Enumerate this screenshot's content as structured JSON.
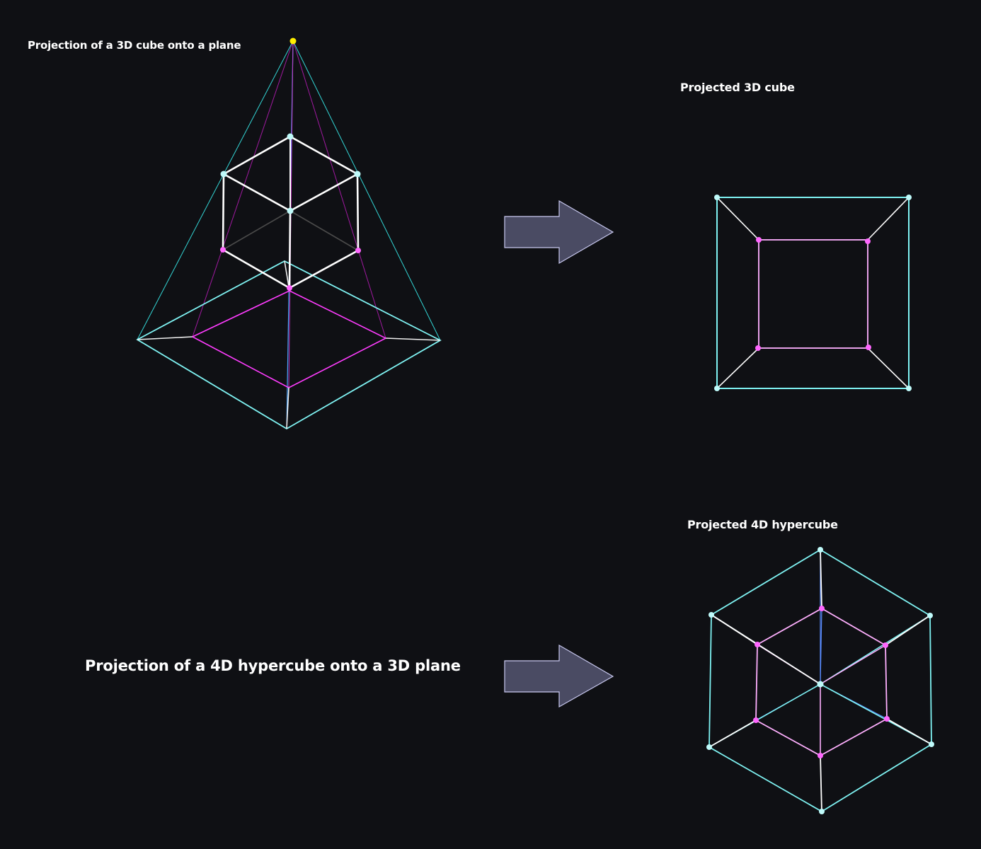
{
  "labels": {
    "cube_projection_title": "Projection of a 3D cube onto a plane",
    "projected_cube_title": "Projected 3D cube",
    "projected_hypercube_title": "Projected 4D hypercube",
    "hypercube_projection_title": "Projection of a 4D hypercube onto a 3D plane"
  },
  "colors": {
    "background": "#0f1014",
    "cyan": "#7ff3f3",
    "magenta": "#ff3cff",
    "pink": "#ff9cff",
    "white": "#ffffff",
    "light_source": "#ffef00",
    "arrow_fill": "#4a4b63",
    "arrow_stroke": "#c9c9f0"
  }
}
